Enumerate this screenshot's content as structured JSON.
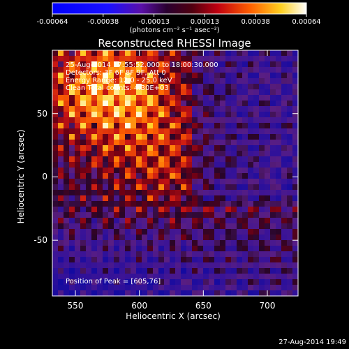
{
  "colorbar": {
    "ticks": [
      "-0.00064",
      "-0.00038",
      "-0.00013",
      "0.00013",
      "0.00038",
      "0.00064"
    ],
    "units": "(photons cm⁻² s⁻¹ asec⁻²)",
    "range": [
      -0.00064,
      0.00064
    ]
  },
  "chart_data": {
    "type": "heatmap",
    "title": "Reconstructed RHESSI Image",
    "xlabel": "Heliocentric X (arcsec)",
    "ylabel": "Heliocentric Y (arcsec)",
    "xlim": [
      532,
      724
    ],
    "ylim": [
      -94,
      100
    ],
    "xticks": [
      550,
      600,
      650,
      700
    ],
    "yticks": [
      -50,
      0,
      50
    ],
    "annotations": {
      "time_range": "25-Aug-2014 17:55:52.000 to 18:00:30.000",
      "detectors": "Detectors: 3F 6F 8F 9F, Att 0",
      "energy": "Energy Range: 12.0 - 25.0 keV",
      "clean": "Clean    Total counts: 4.30E+03",
      "peak": "Position of Peak = [605,76]"
    },
    "peak_position": [
      605,
      76
    ]
  },
  "footer": {
    "timestamp": "27-Aug-2014 19:49"
  }
}
